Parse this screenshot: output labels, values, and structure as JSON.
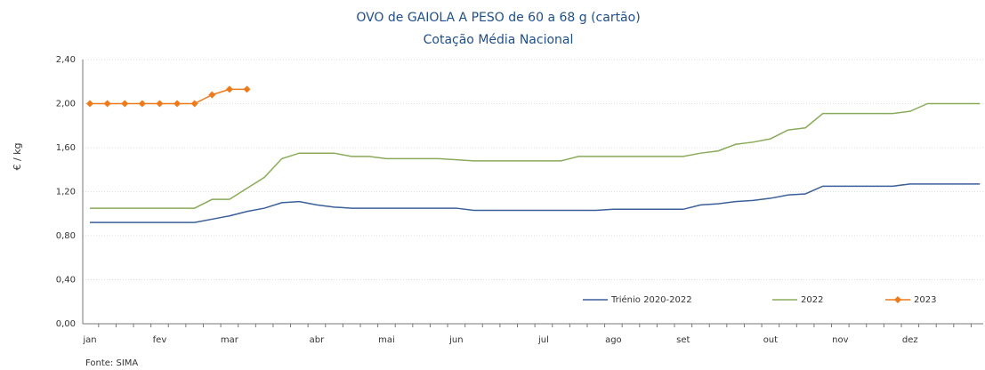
{
  "chart_data": {
    "type": "line",
    "title": "OVO de GAIOLA A PESO de 60 a 68 g (cartão)",
    "subtitle": "Cotação Média Nacional",
    "y_label": "€ / kg",
    "source": "Fonte: SIMA",
    "categories": [
      "jan",
      null,
      null,
      null,
      "fev",
      null,
      null,
      null,
      "mar",
      null,
      null,
      null,
      null,
      "abr",
      null,
      null,
      null,
      "mai",
      null,
      null,
      null,
      "jun",
      null,
      null,
      null,
      null,
      "jul",
      null,
      null,
      null,
      "ago",
      null,
      null,
      null,
      "set",
      null,
      null,
      null,
      null,
      "out",
      null,
      null,
      null,
      "nov",
      null,
      null,
      null,
      "dez",
      null,
      null,
      null,
      null
    ],
    "series": [
      {
        "name": "Triénio 2020-2022",
        "color": "#3a5f9a",
        "marker": false,
        "values": [
          0.92,
          0.92,
          0.92,
          0.92,
          0.92,
          0.92,
          0.92,
          0.95,
          0.98,
          1.02,
          1.05,
          1.1,
          1.11,
          1.08,
          1.06,
          1.05,
          1.05,
          1.05,
          1.05,
          1.05,
          1.05,
          1.05,
          1.03,
          1.03,
          1.03,
          1.03,
          1.03,
          1.03,
          1.03,
          1.03,
          1.04,
          1.04,
          1.04,
          1.04,
          1.04,
          1.08,
          1.09,
          1.11,
          1.12,
          1.14,
          1.17,
          1.18,
          1.25,
          1.25,
          1.25,
          1.25,
          1.25,
          1.27,
          1.27,
          1.27,
          1.27,
          1.27
        ]
      },
      {
        "name": "2022",
        "color": "#8aab5a",
        "marker": false,
        "values": [
          1.05,
          1.05,
          1.05,
          1.05,
          1.05,
          1.05,
          1.05,
          1.13,
          1.13,
          1.23,
          1.33,
          1.5,
          1.55,
          1.55,
          1.55,
          1.52,
          1.52,
          1.5,
          1.5,
          1.5,
          1.5,
          1.49,
          1.48,
          1.48,
          1.48,
          1.48,
          1.48,
          1.48,
          1.52,
          1.52,
          1.52,
          1.52,
          1.52,
          1.52,
          1.52,
          1.55,
          1.57,
          1.63,
          1.65,
          1.68,
          1.76,
          1.78,
          1.91,
          1.91,
          1.91,
          1.91,
          1.91,
          1.93,
          2.0,
          2.0,
          2.0,
          2.0
        ]
      },
      {
        "name": "2023",
        "color": "#f07a1a",
        "marker": true,
        "values": [
          2.0,
          2.0,
          2.0,
          2.0,
          2.0,
          2.0,
          2.0,
          2.08,
          2.13,
          2.13,
          null,
          null,
          null,
          null,
          null,
          null,
          null,
          null,
          null,
          null,
          null,
          null,
          null,
          null,
          null,
          null,
          null,
          null,
          null,
          null,
          null,
          null,
          null,
          null,
          null,
          null,
          null,
          null,
          null,
          null,
          null,
          null,
          null,
          null,
          null,
          null,
          null,
          null,
          null,
          null,
          null,
          null
        ]
      }
    ],
    "ylim": [
      0,
      2.4
    ],
    "yticks": [
      {
        "value": 0,
        "label": "0,00"
      },
      {
        "value": 0.4,
        "label": "0,40"
      },
      {
        "value": 0.8,
        "label": "0,80"
      },
      {
        "value": 1.2,
        "label": "1,20"
      },
      {
        "value": 1.6,
        "label": "1,60"
      },
      {
        "value": 2.0,
        "label": "2,00"
      },
      {
        "value": 2.4,
        "label": "2,40"
      }
    ],
    "grid": true,
    "legend": "bottom-right"
  }
}
